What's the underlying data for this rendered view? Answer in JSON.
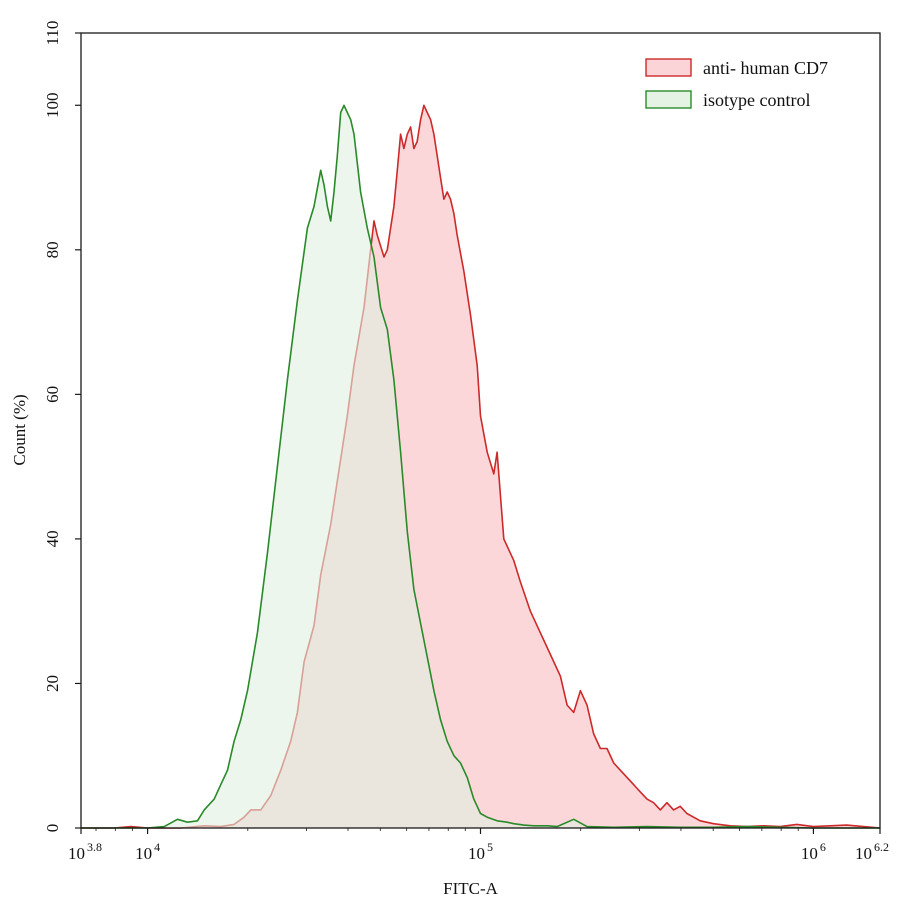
{
  "chart_data": {
    "type": "area",
    "xlabel": "FITC-A",
    "ylabel": "Count  (%)",
    "x_scale": "log10",
    "xlim_log10": [
      3.8,
      6.2
    ],
    "ylim": [
      0,
      110
    ],
    "x_ticks": [
      {
        "base": "10",
        "exp": "3.8",
        "value_log10": 3.8
      },
      {
        "base": "10",
        "exp": "4",
        "value_log10": 4
      },
      {
        "base": "10",
        "exp": "5",
        "value_log10": 5
      },
      {
        "base": "10",
        "exp": "6",
        "value_log10": 6
      },
      {
        "base": "10",
        "exp": "6.2",
        "value_log10": 6.2
      }
    ],
    "y_ticks": [
      "0",
      "20",
      "40",
      "60",
      "80",
      "100",
      "110"
    ],
    "grid": false,
    "legend_position": "top-right",
    "series": [
      {
        "name": "anti- human CD7",
        "color": "#cc2a2a",
        "fill": "#f9c9cc",
        "points_log10x": [
          [
            3.8,
            0
          ],
          [
            3.9,
            0
          ],
          [
            3.95,
            0.2
          ],
          [
            4.0,
            0
          ],
          [
            4.1,
            0
          ],
          [
            4.17,
            0.3
          ],
          [
            4.22,
            0.2
          ],
          [
            4.26,
            0.5
          ],
          [
            4.29,
            1.5
          ],
          [
            4.31,
            2.5
          ],
          [
            4.34,
            2.5
          ],
          [
            4.37,
            4.5
          ],
          [
            4.4,
            8
          ],
          [
            4.43,
            12
          ],
          [
            4.45,
            16
          ],
          [
            4.47,
            23
          ],
          [
            4.5,
            28
          ],
          [
            4.52,
            35
          ],
          [
            4.55,
            42
          ],
          [
            4.57,
            48
          ],
          [
            4.6,
            57
          ],
          [
            4.62,
            64
          ],
          [
            4.65,
            72
          ],
          [
            4.67,
            80
          ],
          [
            4.68,
            84
          ],
          [
            4.69,
            82
          ],
          [
            4.71,
            79
          ],
          [
            4.72,
            80
          ],
          [
            4.74,
            86
          ],
          [
            4.75,
            91
          ],
          [
            4.76,
            96
          ],
          [
            4.77,
            94
          ],
          [
            4.78,
            96
          ],
          [
            4.79,
            97
          ],
          [
            4.8,
            94
          ],
          [
            4.81,
            95
          ],
          [
            4.82,
            98
          ],
          [
            4.83,
            100
          ],
          [
            4.84,
            99
          ],
          [
            4.85,
            98
          ],
          [
            4.86,
            96
          ],
          [
            4.87,
            93
          ],
          [
            4.88,
            90
          ],
          [
            4.89,
            87
          ],
          [
            4.9,
            88
          ],
          [
            4.91,
            87
          ],
          [
            4.92,
            85
          ],
          [
            4.93,
            82
          ],
          [
            4.95,
            77
          ],
          [
            4.97,
            71
          ],
          [
            4.99,
            64
          ],
          [
            5.0,
            57
          ],
          [
            5.02,
            52
          ],
          [
            5.04,
            49
          ],
          [
            5.05,
            52
          ],
          [
            5.07,
            40
          ],
          [
            5.1,
            37
          ],
          [
            5.12,
            34
          ],
          [
            5.15,
            30
          ],
          [
            5.18,
            27
          ],
          [
            5.21,
            24
          ],
          [
            5.24,
            21
          ],
          [
            5.26,
            17
          ],
          [
            5.28,
            16
          ],
          [
            5.3,
            19
          ],
          [
            5.32,
            17
          ],
          [
            5.34,
            13
          ],
          [
            5.36,
            11
          ],
          [
            5.38,
            11
          ],
          [
            5.4,
            9
          ],
          [
            5.42,
            8
          ],
          [
            5.44,
            7
          ],
          [
            5.46,
            6
          ],
          [
            5.48,
            5
          ],
          [
            5.5,
            4
          ],
          [
            5.52,
            3.5
          ],
          [
            5.54,
            2.5
          ],
          [
            5.56,
            3.5
          ],
          [
            5.58,
            2.5
          ],
          [
            5.6,
            3
          ],
          [
            5.62,
            2
          ],
          [
            5.64,
            1.5
          ],
          [
            5.66,
            1
          ],
          [
            5.7,
            0.6
          ],
          [
            5.75,
            0.3
          ],
          [
            5.8,
            0.2
          ],
          [
            5.85,
            0.3
          ],
          [
            5.9,
            0.2
          ],
          [
            5.95,
            0.5
          ],
          [
            6.0,
            0.2
          ],
          [
            6.05,
            0.3
          ],
          [
            6.1,
            0.4
          ],
          [
            6.15,
            0.2
          ],
          [
            6.2,
            0
          ]
        ]
      },
      {
        "name": "isotype control",
        "color": "#2a8a2a",
        "fill": "#dff0df",
        "points_log10x": [
          [
            3.8,
            0
          ],
          [
            3.95,
            0
          ],
          [
            4.0,
            0
          ],
          [
            4.05,
            0.2
          ],
          [
            4.09,
            1.2
          ],
          [
            4.12,
            0.8
          ],
          [
            4.15,
            1
          ],
          [
            4.17,
            2.5
          ],
          [
            4.2,
            4
          ],
          [
            4.22,
            6
          ],
          [
            4.24,
            8
          ],
          [
            4.26,
            12
          ],
          [
            4.28,
            15
          ],
          [
            4.3,
            19
          ],
          [
            4.33,
            27
          ],
          [
            4.36,
            38
          ],
          [
            4.39,
            50
          ],
          [
            4.42,
            62
          ],
          [
            4.45,
            73
          ],
          [
            4.48,
            83
          ],
          [
            4.5,
            86
          ],
          [
            4.52,
            91
          ],
          [
            4.53,
            89
          ],
          [
            4.54,
            86
          ],
          [
            4.55,
            84
          ],
          [
            4.56,
            88
          ],
          [
            4.57,
            93
          ],
          [
            4.58,
            99
          ],
          [
            4.59,
            100
          ],
          [
            4.6,
            99
          ],
          [
            4.61,
            98
          ],
          [
            4.62,
            96
          ],
          [
            4.63,
            92
          ],
          [
            4.64,
            88
          ],
          [
            4.66,
            83
          ],
          [
            4.68,
            79
          ],
          [
            4.7,
            72
          ],
          [
            4.72,
            69
          ],
          [
            4.74,
            62
          ],
          [
            4.76,
            52
          ],
          [
            4.78,
            41
          ],
          [
            4.8,
            33
          ],
          [
            4.83,
            26
          ],
          [
            4.86,
            19
          ],
          [
            4.88,
            15
          ],
          [
            4.9,
            12
          ],
          [
            4.92,
            10
          ],
          [
            4.94,
            9
          ],
          [
            4.96,
            7
          ],
          [
            4.98,
            4
          ],
          [
            5.0,
            2
          ],
          [
            5.02,
            1.5
          ],
          [
            5.05,
            1
          ],
          [
            5.08,
            0.8
          ],
          [
            5.1,
            0.6
          ],
          [
            5.13,
            0.4
          ],
          [
            5.16,
            0.3
          ],
          [
            5.2,
            0.3
          ],
          [
            5.23,
            0.2
          ],
          [
            5.28,
            1.2
          ],
          [
            5.32,
            0.2
          ],
          [
            5.4,
            0.1
          ],
          [
            5.5,
            0.2
          ],
          [
            5.6,
            0.1
          ],
          [
            5.7,
            0.1
          ],
          [
            5.8,
            0.2
          ],
          [
            5.9,
            0.1
          ],
          [
            6.0,
            0
          ],
          [
            6.2,
            0
          ]
        ]
      }
    ]
  }
}
